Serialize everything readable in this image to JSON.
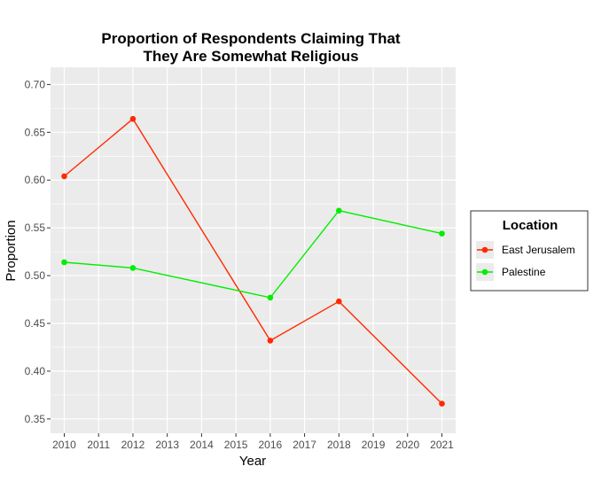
{
  "chart_data": {
    "type": "line",
    "title_line1": "Proportion of Respondents Claiming That",
    "title_line2": "They Are Somewhat Religious",
    "xlabel": "Year",
    "ylabel": "Proportion",
    "x_ticks": [
      "2010",
      "2011",
      "2012",
      "2013",
      "2014",
      "2015",
      "2016",
      "2017",
      "2018",
      "2019",
      "2020",
      "2021"
    ],
    "y_ticks": [
      "0.35",
      "0.40",
      "0.45",
      "0.50",
      "0.55",
      "0.60",
      "0.65",
      "0.70"
    ],
    "xlim": [
      2009.6,
      2021.4
    ],
    "ylim": [
      0.335,
      0.718
    ],
    "grid": true,
    "legend": {
      "title": "Location",
      "position": "right"
    },
    "series": [
      {
        "name": "East Jerusalem",
        "color": "#ff2a00",
        "x": [
          2010,
          2012,
          2016,
          2018,
          2021
        ],
        "y": [
          0.604,
          0.664,
          0.432,
          0.473,
          0.366
        ]
      },
      {
        "name": "Palestine",
        "color": "#00ee00",
        "x": [
          2010,
          2012,
          2016,
          2018,
          2021
        ],
        "y": [
          0.514,
          0.508,
          0.477,
          0.568,
          0.544
        ]
      }
    ]
  }
}
